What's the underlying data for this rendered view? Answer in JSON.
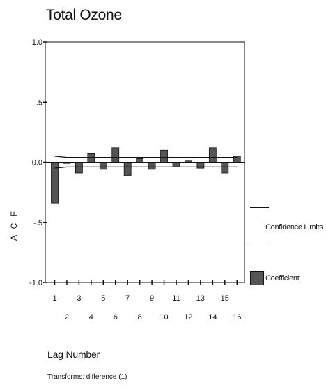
{
  "chart_data": {
    "type": "bar",
    "title": "Total Ozone",
    "ylabel": "A C F",
    "xlabel": "Lag Number",
    "footnote": "Transforms: difference (1)",
    "ylim": [
      -1.0,
      1.0
    ],
    "y_ticks": [
      "1.0",
      ".5",
      "0.0",
      "-.5",
      "-1.0"
    ],
    "y_tick_values": [
      1.0,
      0.5,
      0.0,
      -0.5,
      -1.0
    ],
    "categories": [
      "1",
      "2",
      "3",
      "4",
      "5",
      "6",
      "7",
      "8",
      "9",
      "10",
      "11",
      "12",
      "13",
      "14",
      "15",
      "16"
    ],
    "values": [
      -0.34,
      -0.01,
      -0.09,
      0.07,
      -0.06,
      0.12,
      -0.11,
      0.03,
      -0.06,
      0.1,
      -0.04,
      0.01,
      -0.05,
      0.12,
      -0.09,
      0.05
    ],
    "confidence_limits": {
      "upper": [
        0.05,
        0.04,
        0.04,
        0.04,
        0.04,
        0.04,
        0.04,
        0.04,
        0.04,
        0.04,
        0.04,
        0.04,
        0.04,
        0.04,
        0.04,
        0.04
      ],
      "lower": [
        -0.05,
        -0.04,
        -0.04,
        -0.04,
        -0.04,
        -0.04,
        -0.04,
        -0.04,
        -0.04,
        -0.04,
        -0.04,
        -0.04,
        -0.04,
        -0.04,
        -0.04,
        -0.04
      ]
    },
    "legend": [
      {
        "label": "Confidence Limits",
        "kind": "line"
      },
      {
        "label": "Coefficient",
        "kind": "bar"
      }
    ],
    "legend_position": "right",
    "grid": false,
    "colors": {
      "bar": "#555555",
      "line": "#111111"
    }
  }
}
